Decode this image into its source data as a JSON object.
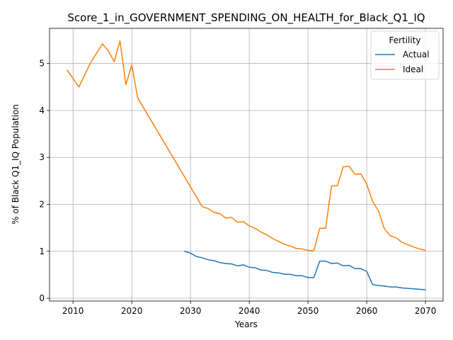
{
  "chart_data": {
    "type": "line",
    "title": "Score_1_in_GOVERNMENT_SPENDING_ON_HEALTH_for_Black_Q1_IQ",
    "xlabel": "Years",
    "ylabel": "% of Black Q1_IQ Population",
    "xlim": [
      2006,
      2073
    ],
    "ylim": [
      -0.06,
      5.75
    ],
    "xticks": [
      2010,
      2020,
      2030,
      2040,
      2050,
      2060,
      2070
    ],
    "yticks": [
      0,
      1,
      2,
      3,
      4,
      5
    ],
    "grid": true,
    "legend": {
      "title": "Fertility",
      "placement": "top-right"
    },
    "series": [
      {
        "name": "Actual",
        "color": "#1f77b4",
        "x": [
          2029,
          2030,
          2031,
          2032,
          2033,
          2034,
          2035,
          2036,
          2037,
          2038,
          2039,
          2040,
          2041,
          2042,
          2043,
          2044,
          2045,
          2046,
          2047,
          2048,
          2049,
          2050,
          2051,
          2052,
          2053,
          2054,
          2055,
          2056,
          2057,
          2058,
          2059,
          2060,
          2061,
          2062,
          2063,
          2064,
          2065,
          2066,
          2067,
          2068,
          2069,
          2070
        ],
        "y": [
          1.0,
          0.96,
          0.89,
          0.86,
          0.82,
          0.8,
          0.76,
          0.74,
          0.73,
          0.69,
          0.71,
          0.66,
          0.65,
          0.6,
          0.59,
          0.55,
          0.54,
          0.51,
          0.51,
          0.48,
          0.48,
          0.44,
          0.44,
          0.79,
          0.79,
          0.74,
          0.75,
          0.69,
          0.7,
          0.63,
          0.63,
          0.57,
          0.29,
          0.27,
          0.26,
          0.24,
          0.24,
          0.22,
          0.21,
          0.2,
          0.19,
          0.18
        ]
      },
      {
        "name": "Ideal",
        "color": "#ff7f0e",
        "x": [
          2009,
          2011,
          2013,
          2015,
          2016,
          2017,
          2018,
          2019,
          2020,
          2021,
          2032,
          2033,
          2034,
          2035,
          2036,
          2037,
          2038,
          2039,
          2040,
          2041,
          2042,
          2043,
          2044,
          2045,
          2046,
          2047,
          2048,
          2049,
          2050,
          2051,
          2052,
          2053,
          2054,
          2055,
          2056,
          2057,
          2058,
          2059,
          2060,
          2061,
          2062,
          2063,
          2064,
          2065,
          2066,
          2067,
          2068,
          2069,
          2070
        ],
        "y": [
          4.86,
          4.5,
          5.02,
          5.42,
          5.27,
          5.04,
          5.48,
          4.55,
          4.97,
          4.27,
          1.95,
          1.91,
          1.83,
          1.8,
          1.71,
          1.72,
          1.62,
          1.63,
          1.54,
          1.49,
          1.41,
          1.35,
          1.27,
          1.21,
          1.15,
          1.11,
          1.06,
          1.05,
          1.02,
          1.01,
          1.49,
          1.49,
          2.39,
          2.4,
          2.8,
          2.81,
          2.64,
          2.65,
          2.43,
          2.06,
          1.86,
          1.48,
          1.33,
          1.29,
          1.19,
          1.14,
          1.09,
          1.05,
          1.02
        ]
      }
    ]
  }
}
